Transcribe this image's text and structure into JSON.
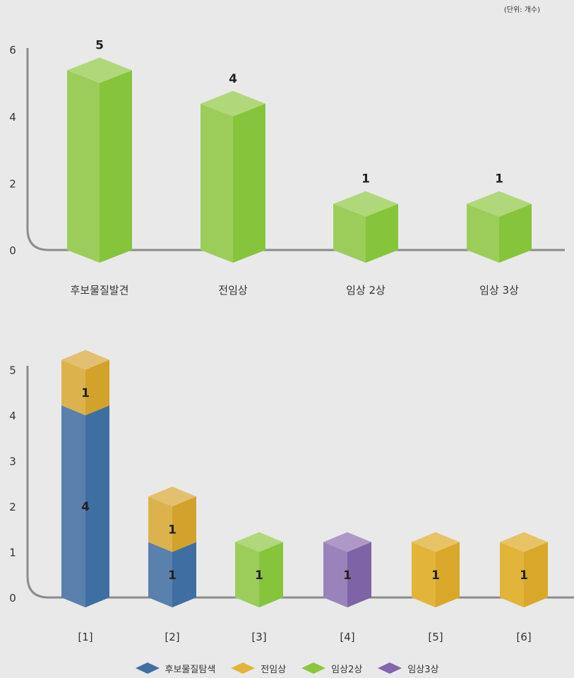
{
  "unit_note": "(단위: 개수)",
  "chart_data": [
    {
      "type": "bar",
      "categories": [
        "후보물질발견",
        "전임상",
        "임상 2상",
        "임상 3상"
      ],
      "values": [
        5,
        4,
        1,
        1
      ],
      "data_labels": [
        "5",
        "4",
        "1",
        "1"
      ],
      "yticks": [
        "0",
        "2",
        "4",
        "6"
      ],
      "ylim": [
        0,
        6
      ],
      "color": "#8cc63f"
    },
    {
      "type": "bar",
      "stacked": true,
      "categories": [
        "[1]",
        "[2]",
        "[3]",
        "[4]",
        "[5]",
        "[6]"
      ],
      "yticks": [
        "0",
        "1",
        "2",
        "3",
        "4",
        "5"
      ],
      "ylim": [
        0,
        5
      ],
      "bars": [
        [
          {
            "series": "후보물질탐색",
            "value": 4
          },
          {
            "series": "전임상",
            "value": 1
          }
        ],
        [
          {
            "series": "후보물질탐색",
            "value": 1
          },
          {
            "series": "전임상",
            "value": 1
          }
        ],
        [
          {
            "series": "임상2상",
            "value": 1
          }
        ],
        [
          {
            "series": "임상3상",
            "value": 1
          }
        ],
        [
          {
            "series": "전임상",
            "value": 1
          }
        ],
        [
          {
            "series": "전임상",
            "value": 1
          }
        ]
      ]
    }
  ],
  "legend": [
    {
      "name": "후보물질탐색",
      "color": "#3f6ea3"
    },
    {
      "name": "전임상",
      "color": "#e3b43a"
    },
    {
      "name": "임상2상",
      "color": "#8cc63f"
    },
    {
      "name": "임상3상",
      "color": "#8466ac"
    }
  ],
  "colors": {
    "axis": "#8c8c8c",
    "palette": {
      "후보물질탐색": {
        "front": "#5a80ad",
        "side": "#3f6ea3",
        "top": "#6f93bc"
      },
      "전임상": {
        "front": "#e3b43a",
        "side": "#d9a82a",
        "top": "#e8c366"
      },
      "전임상_stack": {
        "front": "#dcb24d",
        "side": "#d2a22a",
        "top": "#e2c06f"
      },
      "임상2상": {
        "front": "#9ccd5a",
        "side": "#86c43b",
        "top": "#b0d87a"
      },
      "임상3상": {
        "front": "#9a83ba",
        "side": "#7e64a6",
        "top": "#ad98c8"
      }
    }
  }
}
